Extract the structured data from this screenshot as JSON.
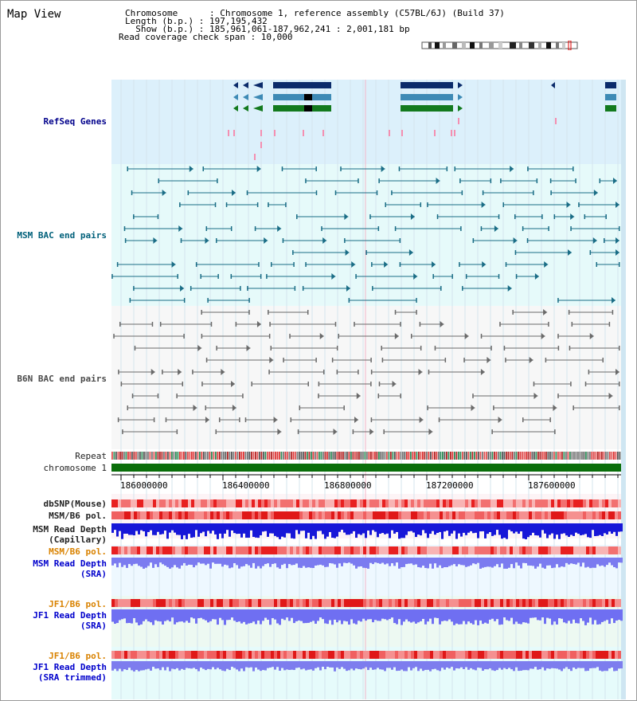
{
  "header": {
    "title": "Map View",
    "lines": [
      "Chromosome      : Chromosome 1, reference assembly (C57BL/6J) (Build 37)",
      "Length (b.p.) : 197,195,432",
      "  Show (b.p.) : 185,961,061-187,962,241 : 2,001,181 bp",
      "Read coverage check span : 10,000"
    ]
  },
  "tracks": {
    "refseq": "RefSeq Genes",
    "msm_bac": "MSM BAC end pairs",
    "b6n_bac": "B6N BAC end pairs",
    "repeat": "Repeat",
    "chromosome": "chromosome 1",
    "dbsnp": "dbSNP(Mouse)",
    "msm_b6_pol": "MSM/B6 pol.",
    "msm_depth_cap_1": "MSM Read Depth",
    "msm_depth_cap_2": "(Capillary)",
    "msm_b6_pol_2": "MSM/B6 pol.",
    "msm_depth_sra_1": "MSM Read Depth",
    "msm_depth_sra_2": "(SRA)",
    "jf1_b6_pol": "JF1/B6 pol.",
    "jf1_depth_sra_1": "JF1 Read Depth",
    "jf1_depth_sra_2": "(SRA)",
    "jf1_b6_pol_2": "JF1/B6 pol.",
    "jf1_depth_trim_1": "JF1 Read Depth",
    "jf1_depth_trim_2": "(SRA trimmed)"
  },
  "axis": {
    "ticks": [
      "186000000",
      "186400000",
      "186800000",
      "187200000",
      "187600000"
    ]
  },
  "colors": {
    "refseq_bg": "#dff0fb",
    "msm_bg": "#e9fbfb",
    "b6n_bg": "#f7f7f7",
    "gene_navy": "#0b2b6a",
    "gene_steel": "#3d8ab5",
    "gene_green": "#137a1e",
    "chromosome": "#0a6e0a",
    "bac_teal": "#1a6d86",
    "bac_gray": "#6a6a6a",
    "depth_blue": "#1717d8",
    "depth_light": "#7b7bf0"
  }
}
